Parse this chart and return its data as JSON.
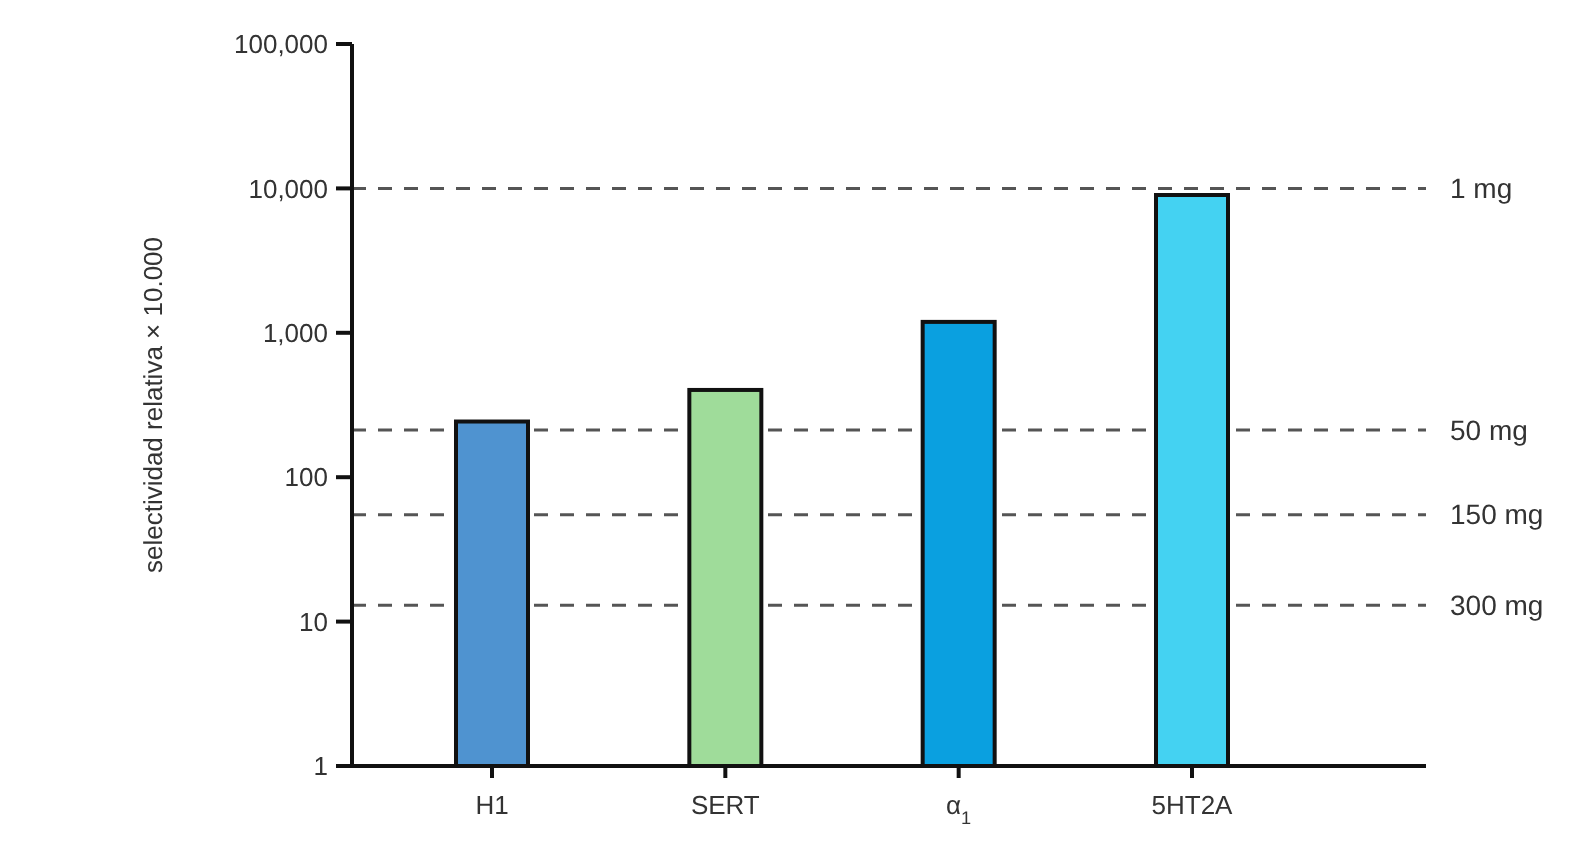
{
  "chart_data": {
    "type": "bar",
    "ylabel": "selectividad relativa × 10.000",
    "categories": [
      "H1",
      "SERT",
      "α$_{1}$",
      "5HT2A"
    ],
    "values": [
      243,
      402,
      1190,
      9000
    ],
    "colors": [
      "#4f93d0",
      "#9fdc9a",
      "#0aa0e0",
      "#44d2f2"
    ],
    "log": true,
    "ylim": [
      1,
      100000
    ],
    "yticks": [
      1,
      10,
      {
        "value": 100,
        "label": "100"
      },
      {
        "value": 1000,
        "label": "1,000"
      },
      {
        "value": 10000,
        "label": "10,000"
      },
      {
        "value": 100000,
        "label": "100,000"
      }
    ],
    "ref_lines": [
      {
        "axis": "y",
        "value": 10000,
        "label": "1 mg",
        "line_style": "dashed",
        "color": "#555555"
      },
      {
        "axis": "y",
        "value": 212,
        "label": "50 mg",
        "line_style": "dashed",
        "color": "#555555"
      },
      {
        "axis": "y",
        "value": 55,
        "label": "150 mg",
        "line_style": "dashed",
        "color": "#555555"
      },
      {
        "axis": "y",
        "value": 13,
        "label": "300 mg",
        "line_style": "dashed",
        "color": "#555555"
      }
    ]
  }
}
